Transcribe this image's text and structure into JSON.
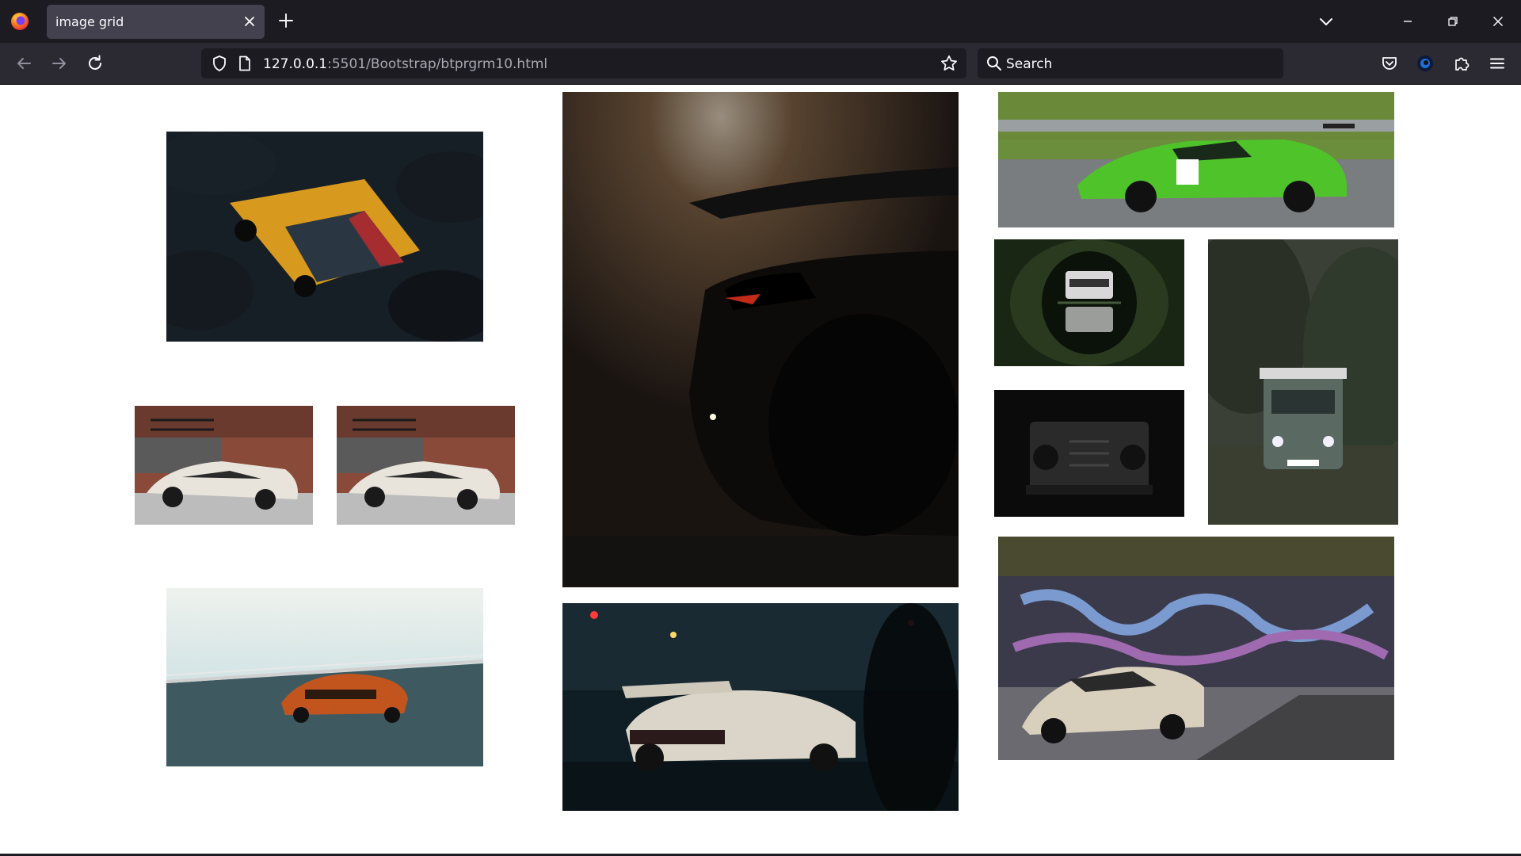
{
  "browser": {
    "tab_title": "image grid",
    "url_host": "127.0.0.1",
    "url_path": ":5501/Bootstrap/btprgrm10.html",
    "search_placeholder": "Search"
  },
  "icons": {
    "firefox": "firefox-logo-icon",
    "close_tab": "close-icon",
    "new_tab": "plus-icon",
    "list_tabs": "chevron-down-icon",
    "minimize": "minimize-icon",
    "restore": "restore-icon",
    "close_window": "close-icon",
    "back": "arrow-left-icon",
    "forward": "arrow-right-icon",
    "reload": "reload-icon",
    "shield": "shield-icon",
    "page": "page-icon",
    "bookmark": "star-icon",
    "search": "search-icon",
    "pocket": "pocket-icon",
    "account": "account-icon",
    "extensions": "puzzle-icon",
    "menu": "hamburger-menu-icon"
  },
  "gallery": {
    "images": [
      {
        "name": "black-yellow-lamborghini-huracan-parking",
        "palette": [
          "#1f2a33",
          "#d89a1e",
          "#0d1216"
        ]
      },
      {
        "name": "white-lamborghini-aventador-roadster-1",
        "palette": [
          "#8a4a3a",
          "#e8e4dc",
          "#4a4a4a"
        ]
      },
      {
        "name": "white-lamborghini-aventador-roadster-2",
        "palette": [
          "#8a4a3a",
          "#e8e4dc",
          "#4a4a4a"
        ]
      },
      {
        "name": "orange-lamborghini-on-bridge",
        "palette": [
          "#cfe3e6",
          "#c2541e",
          "#3e5a60"
        ]
      },
      {
        "name": "lamborghini-huracan-rear-dark",
        "palette": [
          "#1a1512",
          "#3a3027",
          "#0a0908"
        ]
      },
      {
        "name": "porsche-rwb-night-street",
        "palette": [
          "#0f1d24",
          "#dad5c8",
          "#2a3a40"
        ]
      },
      {
        "name": "green-lamborghini-race-car",
        "palette": [
          "#6a8a3a",
          "#4fc42a",
          "#7a7d7f"
        ]
      },
      {
        "name": "land-rover-defender-forest-reflection",
        "palette": [
          "#1a2614",
          "#d8d8d8",
          "#0b120a"
        ]
      },
      {
        "name": "land-rover-defender-front-dark",
        "palette": [
          "#0b0b0b",
          "#2a2a2a",
          "#000000"
        ]
      },
      {
        "name": "land-rover-defender-forest",
        "palette": [
          "#3a4036",
          "#5a6a62",
          "#2a2f28"
        ]
      },
      {
        "name": "white-lamborghini-huracan-graffiti",
        "palette": [
          "#3a3a4a",
          "#d8cfbd",
          "#6a6a70"
        ]
      }
    ]
  }
}
